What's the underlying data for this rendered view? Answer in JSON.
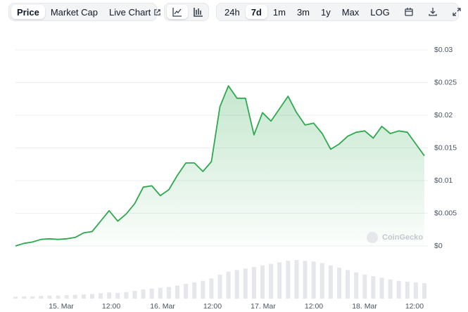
{
  "toolbar": {
    "views": [
      "Price",
      "Market Cap",
      "Live Chart"
    ],
    "ranges": [
      "24h",
      "7d",
      "1m",
      "3m",
      "1y",
      "Max",
      "LOG"
    ],
    "selected_view": 0,
    "selected_range": 1
  },
  "chart_data": {
    "type": "line",
    "color": "#2fa84f",
    "watermark": "CoinGecko",
    "values": [
      0,
      0.0004,
      0.0006,
      0.001,
      0.0011,
      0.001,
      0.0011,
      0.0013,
      0.002,
      0.0022,
      0.0038,
      0.0054,
      0.0038,
      0.0049,
      0.0065,
      0.009,
      0.0092,
      0.0077,
      0.0086,
      0.0108,
      0.0127,
      0.0127,
      0.0114,
      0.0129,
      0.0213,
      0.0245,
      0.0226,
      0.0226,
      0.017,
      0.0204,
      0.0191,
      0.021,
      0.0229,
      0.0204,
      0.0185,
      0.0188,
      0.0172,
      0.0148,
      0.0156,
      0.0168,
      0.0174,
      0.0176,
      0.0165,
      0.0183,
      0.0172,
      0.0176,
      0.0174,
      0.0156,
      0.0138
    ],
    "volume_values": [
      5,
      6,
      6,
      7,
      8,
      8,
      9,
      10,
      11,
      12,
      14,
      16,
      15,
      17,
      20,
      24,
      26,
      28,
      30,
      34,
      38,
      42,
      46,
      52,
      62,
      70,
      74,
      78,
      82,
      86,
      90,
      94,
      98,
      100,
      98,
      96,
      92,
      86,
      80,
      74,
      68,
      62,
      58,
      54,
      50,
      46,
      44,
      42,
      40
    ],
    "xlim": [
      0,
      48
    ],
    "xticks": [
      {
        "value": 5.37,
        "label": "15. Mar"
      },
      {
        "value": 11.24,
        "label": "12:00"
      },
      {
        "value": 17.27,
        "label": "16. Mar"
      },
      {
        "value": 23.13,
        "label": "12:00"
      },
      {
        "value": 29.08,
        "label": "17. Mar"
      },
      {
        "value": 35.03,
        "label": "12:00"
      },
      {
        "value": 40.98,
        "label": "18. Mar"
      },
      {
        "value": 46.84,
        "label": "12:00"
      }
    ],
    "ylim": [
      0,
      0.03
    ],
    "yticks": [
      {
        "value": 0,
        "label": "$0"
      },
      {
        "value": 0.005,
        "label": "$0.005"
      },
      {
        "value": 0.01,
        "label": "$0.01"
      },
      {
        "value": 0.015,
        "label": "$0.015"
      },
      {
        "value": 0.02,
        "label": "$0.02"
      },
      {
        "value": 0.025,
        "label": "$0.025"
      },
      {
        "value": 0.03,
        "label": "$0.03"
      }
    ],
    "grid": true
  }
}
